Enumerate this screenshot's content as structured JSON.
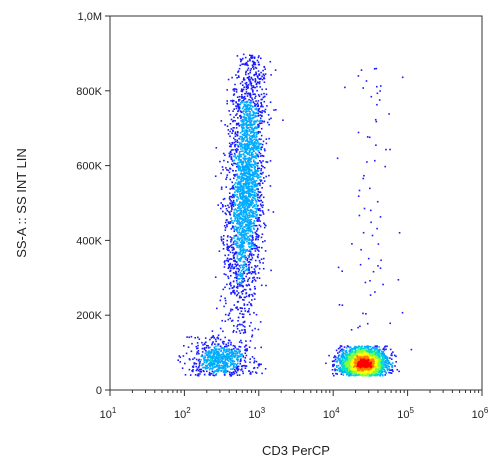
{
  "chart_data": {
    "type": "scatter",
    "title": "",
    "xlabel": "CD3 PerCP",
    "ylabel": "SS-A :: SS INT LIN",
    "x_scale": "log",
    "xlim": [
      10,
      1000000
    ],
    "ylim": [
      0,
      1000000
    ],
    "x_ticks": [
      {
        "value": 10,
        "base": "10",
        "exp": "1"
      },
      {
        "value": 100,
        "base": "10",
        "exp": "2"
      },
      {
        "value": 1000,
        "base": "10",
        "exp": "3"
      },
      {
        "value": 10000,
        "base": "10",
        "exp": "4"
      },
      {
        "value": 100000,
        "base": "10",
        "exp": "5"
      },
      {
        "value": 1000000,
        "base": "10",
        "exp": "6"
      }
    ],
    "y_ticks": [
      {
        "value": 0,
        "label": "0"
      },
      {
        "value": 200000,
        "label": "200K"
      },
      {
        "value": 400000,
        "label": "400K"
      },
      {
        "value": 600000,
        "label": "600K"
      },
      {
        "value": 800000,
        "label": "800K"
      },
      {
        "value": 1000000,
        "label": "1,0M"
      }
    ],
    "grid": false,
    "legend": "none",
    "color_scale": [
      "#1a1aff",
      "#00aaff",
      "#00e0c0",
      "#80ff40",
      "#ffff00",
      "#ff8000",
      "#ff0000"
    ],
    "populations": [
      {
        "name": "",
        "x_center": 650,
        "x_log_spread": 0.12,
        "y_min": 150000,
        "y_max": 900000,
        "y_center": 560000,
        "density": "high"
      },
      {
        "name": "",
        "x_center": 300,
        "x_log_spread": 0.2,
        "y_min": 40000,
        "y_max": 150000,
        "y_center": 80000,
        "density": "medium"
      },
      {
        "name": "",
        "x_center": 25000,
        "x_log_spread": 0.15,
        "y_min": 40000,
        "y_max": 120000,
        "y_center": 72000,
        "density": "high"
      },
      {
        "name": "",
        "x_center": 30000,
        "x_log_spread": 0.2,
        "y_min": 150000,
        "y_max": 880000,
        "y_center": 450000,
        "density": "sparse"
      }
    ]
  }
}
